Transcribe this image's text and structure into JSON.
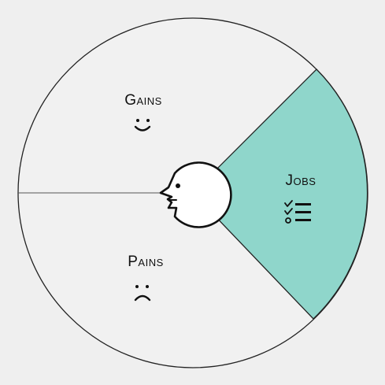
{
  "colors": {
    "background": "#efefef",
    "circle_fill": "#f1f1f1",
    "jobs_fill": "#8fd6cb",
    "stroke": "#222222"
  },
  "segments": {
    "gains": {
      "label": "Gains",
      "icon": "smile-icon"
    },
    "jobs": {
      "label": "Jobs",
      "icon": "checklist-icon"
    },
    "pains": {
      "label": "Pains",
      "icon": "frown-icon"
    }
  },
  "center": {
    "icon": "customer-head-icon"
  }
}
